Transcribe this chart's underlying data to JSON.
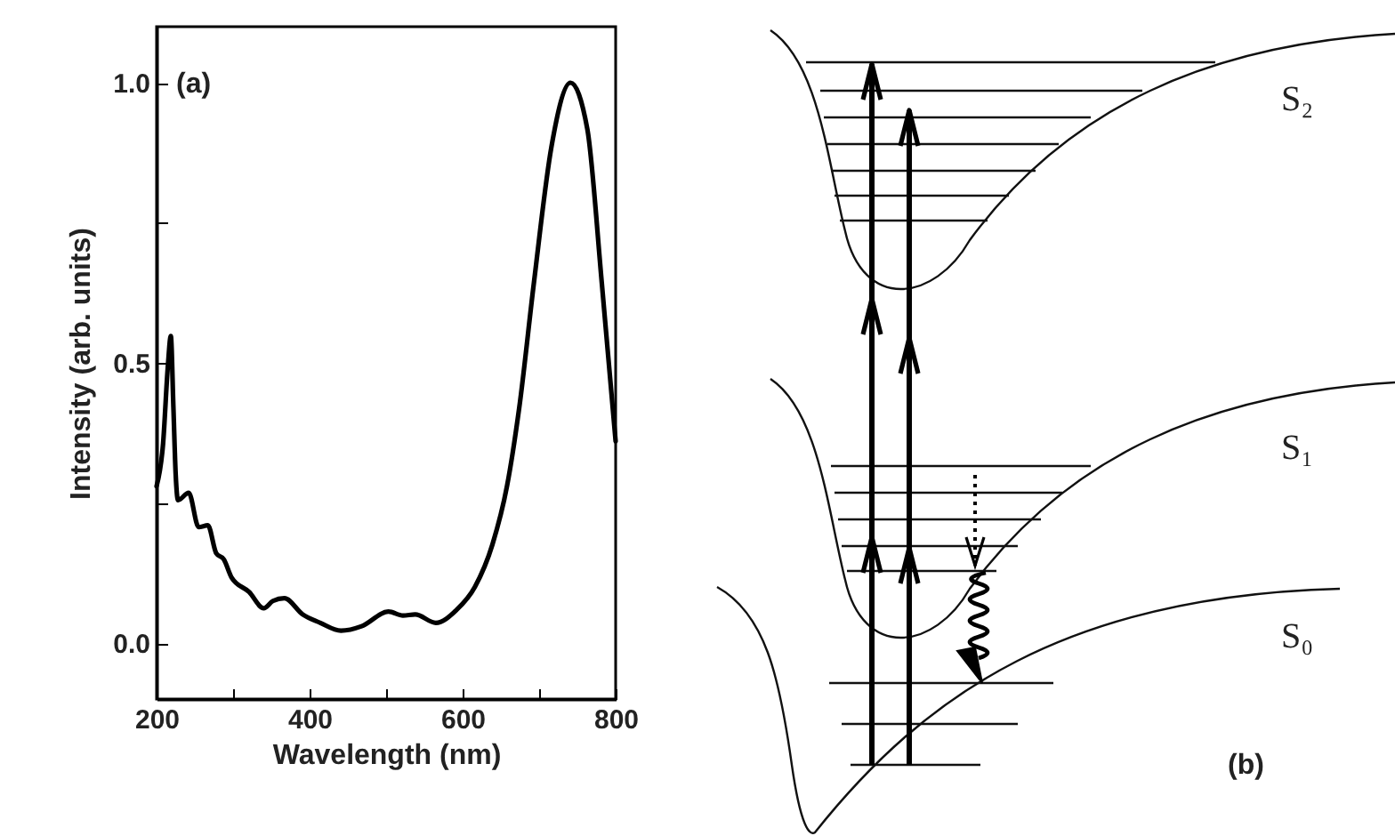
{
  "chart_data": [
    {
      "type": "line",
      "xlabel": "Wavelength (nm)",
      "ylabel": "Intensity (arb. units)",
      "annotations": [
        "(a)"
      ],
      "x": [
        200,
        208.5,
        214.7,
        218.6,
        222,
        225,
        228,
        242,
        255,
        267,
        278,
        288,
        298,
        321,
        340,
        352,
        367,
        391,
        414,
        441,
        468,
        503,
        522,
        538,
        565,
        592,
        616,
        639,
        658,
        674,
        693,
        716,
        741,
        763,
        782,
        800
      ],
      "series": [
        {
          "color": "#000000",
          "values": [
            0.28,
            0.356,
            0.493,
            0.548,
            0.42,
            0.3,
            0.255,
            0.268,
            0.207,
            0.21,
            0.16,
            0.149,
            0.117,
            0.091,
            0.062,
            0.075,
            0.08,
            0.051,
            0.036,
            0.022,
            0.03,
            0.056,
            0.049,
            0.051,
            0.036,
            0.059,
            0.1,
            0.176,
            0.28,
            0.42,
            0.641,
            0.885,
            1.0,
            0.917,
            0.641,
            0.36
          ]
        }
      ],
      "xlim": [
        200,
        800
      ],
      "ylim": [
        -0.1,
        1.1
      ],
      "xticks": [
        200,
        {
          "value": 300,
          "label": null
        },
        400,
        {
          "value": 500,
          "label": null
        },
        600,
        {
          "value": 700,
          "label": null
        },
        800
      ],
      "yticks": [
        {
          "value": 0,
          "label": "0.0"
        },
        {
          "value": 0.25,
          "label": null
        },
        {
          "value": 0.5,
          "label": "0.5"
        },
        {
          "value": 0.75,
          "label": null
        },
        {
          "value": 1,
          "label": "1.0"
        }
      ],
      "grid": false,
      "marker": "none",
      "line_style": "solid"
    },
    {
      "type": "other",
      "annotations": [
        "S₂",
        "S₁",
        "S₀",
        "(b)"
      ]
    }
  ]
}
